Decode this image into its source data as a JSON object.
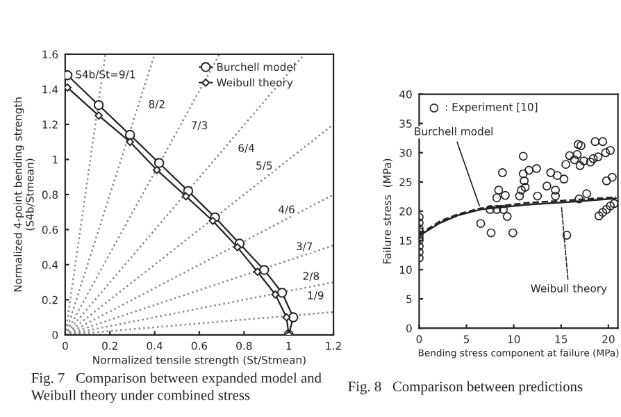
{
  "chart_data": [
    {
      "type": "line",
      "xlabel": "Normalized tensile strength (St/Stmean)",
      "ylabel": "Normalized 4-point bending strength\n(S4b/Stmean)",
      "xlim": [
        0,
        1.2
      ],
      "ylim": [
        0,
        1.6
      ],
      "xticks": [
        0,
        0.2,
        0.4,
        0.6,
        0.8,
        1,
        1.2
      ],
      "yticks": [
        0,
        0.2,
        0.4,
        0.6,
        0.8,
        1,
        1.2,
        1.4,
        1.6
      ],
      "grid": false,
      "legend": "top",
      "series": [
        {
          "name": "Burchell model",
          "color": "#222222",
          "marker": "circle",
          "line_style": "solid",
          "x": [
            0.01,
            0.15,
            0.29,
            0.42,
            0.55,
            0.67,
            0.78,
            0.89,
            0.97,
            1.02,
            1.0
          ],
          "values": [
            1.48,
            1.31,
            1.14,
            0.98,
            0.82,
            0.67,
            0.52,
            0.37,
            0.24,
            0.1,
            0
          ]
        },
        {
          "name": "Weibull theory",
          "color": "#222222",
          "marker": "diamond",
          "line_style": "solid",
          "x": [
            0.01,
            0.15,
            0.29,
            0.41,
            0.54,
            0.66,
            0.77,
            0.86,
            0.94,
            0.99,
            1.0
          ],
          "values": [
            1.41,
            1.25,
            1.1,
            0.94,
            0.79,
            0.65,
            0.5,
            0.36,
            0.23,
            0.1,
            0
          ]
        },
        {
          "color": "#888888",
          "marker": "none",
          "line_style": "dotted",
          "x": [
            0,
            0.18
          ],
          "values": [
            0,
            1.6
          ]
        },
        {
          "color": "#888888",
          "marker": "none",
          "line_style": "dotted",
          "x": [
            0,
            0.4
          ],
          "values": [
            0,
            1.6
          ]
        },
        {
          "color": "#888888",
          "marker": "none",
          "line_style": "dotted",
          "x": [
            0,
            0.69
          ],
          "values": [
            0,
            1.6
          ]
        },
        {
          "color": "#888888",
          "marker": "none",
          "line_style": "dotted",
          "x": [
            0,
            1.07
          ],
          "values": [
            0,
            1.6
          ]
        },
        {
          "color": "#888888",
          "marker": "none",
          "line_style": "dotted",
          "x": [
            0,
            1.2
          ],
          "values": [
            0,
            1.2
          ]
        },
        {
          "color": "#888888",
          "marker": "none",
          "line_style": "dotted",
          "x": [
            0,
            1.2
          ],
          "values": [
            0,
            0.8
          ]
        },
        {
          "color": "#888888",
          "marker": "none",
          "line_style": "dotted",
          "x": [
            0,
            1.2
          ],
          "values": [
            0,
            0.51
          ]
        },
        {
          "color": "#888888",
          "marker": "none",
          "line_style": "dotted",
          "x": [
            0,
            1.2
          ],
          "values": [
            0,
            0.3
          ]
        },
        {
          "color": "#888888",
          "marker": "none",
          "line_style": "dotted",
          "x": [
            0,
            1.2
          ],
          "values": [
            0,
            0.13
          ]
        }
      ],
      "annotations": [
        {
          "text": "S4b/St=9/1",
          "x": 0.18,
          "y": 1.48
        },
        {
          "text": "8/2",
          "x": 0.41,
          "y": 1.31
        },
        {
          "text": "7/3",
          "x": 0.6,
          "y": 1.19
        },
        {
          "text": "6/4",
          "x": 0.81,
          "y": 1.06
        },
        {
          "text": "5/5",
          "x": 0.89,
          "y": 0.96
        },
        {
          "text": "4/6",
          "x": 0.99,
          "y": 0.71
        },
        {
          "text": "3/7",
          "x": 1.07,
          "y": 0.5
        },
        {
          "text": "2/8",
          "x": 1.1,
          "y": 0.33
        },
        {
          "text": "1/9",
          "x": 1.12,
          "y": 0.22
        },
        "Fig. 7   Comparison between expanded model and\nWeibull theory under combined stress"
      ]
    },
    {
      "type": "scatter",
      "xlabel": "Bending stress component at failure (MPa)",
      "ylabel": "Failure stress  (MPa)",
      "xlim": [
        0,
        21
      ],
      "ylim": [
        0,
        40
      ],
      "xticks": [
        0,
        5,
        10,
        15,
        20
      ],
      "yticks": [
        0,
        5,
        10,
        15,
        20,
        25,
        30,
        35,
        40
      ],
      "grid": false,
      "legend": "top left",
      "series": [
        {
          "name": ": Experiment [10]",
          "color": "#222222",
          "marker": "circle",
          "x": [
            0,
            0,
            0,
            0,
            0,
            0,
            0,
            0,
            0,
            0,
            6.5,
            7.6,
            9.9,
            7.5,
            8.2,
            8.9,
            9.3,
            8.2,
            9.1,
            8.4,
            8.8,
            10.6,
            10.8,
            11.2,
            11.1,
            11.0,
            11.6,
            11.0,
            12.4,
            12.5,
            13.5,
            13.9,
            14.4,
            14.4,
            14.6,
            15.3,
            15.5,
            15.6,
            15.9,
            16.4,
            16.7,
            16.8,
            17.1,
            17.0,
            17.4,
            16.9,
            17.7,
            18.1,
            18.4,
            18.6,
            19.4,
            18.9,
            19.7,
            20.2,
            19.0,
            19.4,
            19.8,
            20.2,
            19.8,
            20.4,
            20.6
          ],
          "values": [
            19,
            18,
            17,
            16.5,
            16,
            15.5,
            15,
            14,
            13,
            12,
            17.9,
            16.3,
            16.3,
            20.3,
            20.3,
            20.3,
            19.1,
            22.3,
            22.7,
            23.6,
            26.6,
            22.6,
            23.6,
            24.1,
            25.2,
            26.4,
            27.0,
            29.4,
            27.3,
            22.6,
            24.3,
            26.6,
            23.6,
            22.6,
            26.1,
            25.5,
            28.0,
            15.9,
            29.5,
            28.8,
            29.7,
            31.4,
            31.2,
            27.8,
            28.6,
            22.1,
            23.0,
            28.4,
            29.0,
            31.9,
            31.9,
            29.3,
            30.0,
            30.4,
            19.2,
            19.8,
            20.3,
            20.9,
            25.2,
            25.8,
            21.3
          ]
        },
        {
          "type": "line",
          "color": "#222222",
          "marker": "none",
          "line_style": "solid",
          "x": [
            0,
            2.2,
            4.1,
            6.5,
            11.2,
            16.0,
            20.8
          ],
          "values": [
            15.8,
            18.0,
            19.3,
            20.3,
            21.1,
            21.6,
            22.2
          ]
        },
        {
          "type": "line",
          "color": "#222222",
          "marker": "none",
          "line_style": "dashed",
          "x": [
            0,
            2.2,
            4.1,
            6.5,
            11.2,
            16.0,
            20.8
          ],
          "values": [
            16.0,
            18.3,
            19.5,
            20.5,
            21.4,
            21.9,
            22.4
          ]
        }
      ],
      "annotations": [
        {
          "text": "Burchell model",
          "x": 6.5,
          "y": 20.3
        },
        {
          "text": "Weibull theory",
          "x": 15,
          "y": 21.5
        },
        "Fig. 8   Comparison between predictions"
      ]
    }
  ]
}
